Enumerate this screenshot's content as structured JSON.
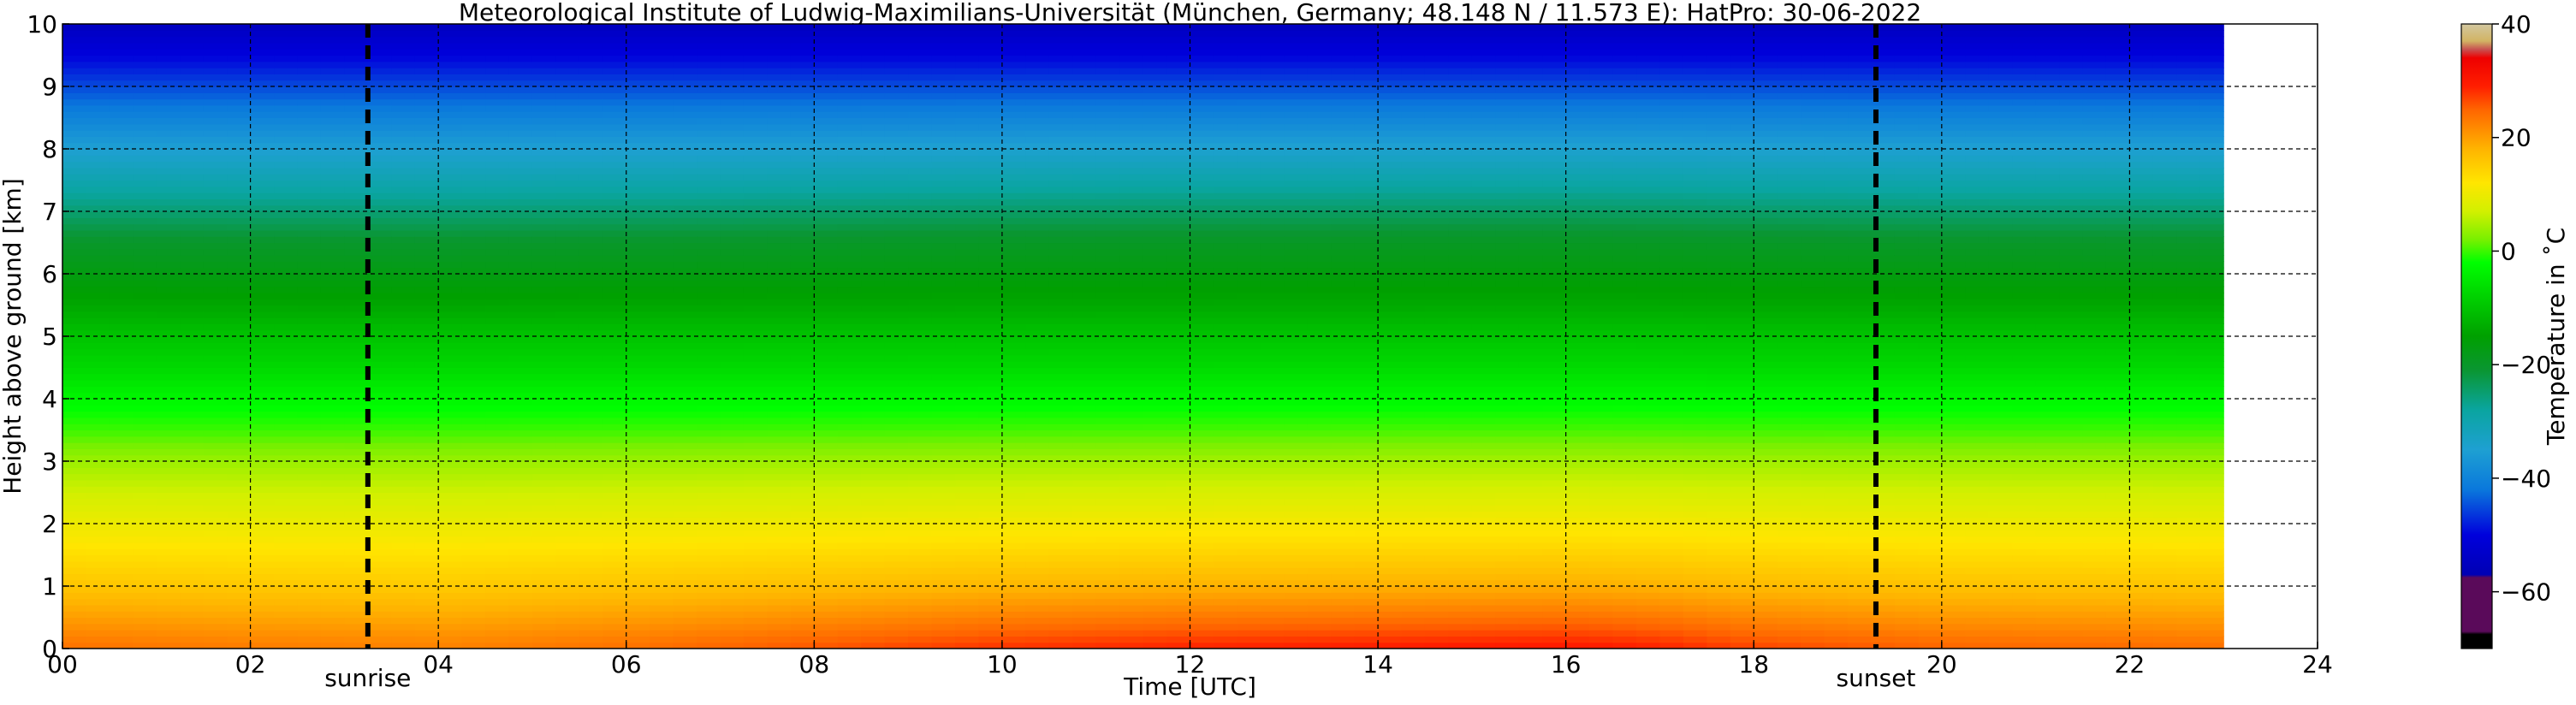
{
  "chart_data": {
    "type": "heatmap",
    "title": "Meteorological Institute of Ludwig-Maximilians-Universität (München, Germany; 48.148 N / 11.573 E):    HatPro: 30-06-2022",
    "xlabel": "Time [UTC]",
    "ylabel": "Height above ground [km]",
    "xlim": [
      0,
      24
    ],
    "ylim": [
      0,
      10
    ],
    "data_end_hour": 23.0,
    "x_ticks": [
      {
        "value": 0,
        "label": "00"
      },
      {
        "value": 2,
        "label": "02"
      },
      {
        "value": 4,
        "label": "04"
      },
      {
        "value": 6,
        "label": "06"
      },
      {
        "value": 8,
        "label": "08"
      },
      {
        "value": 10,
        "label": "10"
      },
      {
        "value": 12,
        "label": "12"
      },
      {
        "value": 14,
        "label": "14"
      },
      {
        "value": 16,
        "label": "16"
      },
      {
        "value": 18,
        "label": "18"
      },
      {
        "value": 20,
        "label": "20"
      },
      {
        "value": 22,
        "label": "22"
      },
      {
        "value": 24,
        "label": "24"
      }
    ],
    "y_ticks": [
      {
        "value": 0,
        "label": "0"
      },
      {
        "value": 1,
        "label": "1"
      },
      {
        "value": 2,
        "label": "2"
      },
      {
        "value": 3,
        "label": "3"
      },
      {
        "value": 4,
        "label": "4"
      },
      {
        "value": 5,
        "label": "5"
      },
      {
        "value": 6,
        "label": "6"
      },
      {
        "value": 7,
        "label": "7"
      },
      {
        "value": 8,
        "label": "8"
      },
      {
        "value": 9,
        "label": "9"
      },
      {
        "value": 10,
        "label": "10"
      }
    ],
    "grid": true,
    "annotations": [
      {
        "label": "sunrise",
        "x": 3.25,
        "style": "dashed-vertical-line"
      },
      {
        "label": "sunset",
        "x": 19.3,
        "style": "dashed-vertical-line"
      }
    ],
    "colorbar": {
      "label": "Temperature in ˚C",
      "range": [
        -70,
        40
      ],
      "ticks": [
        {
          "value": 40,
          "label": "40"
        },
        {
          "value": 20,
          "label": "20"
        },
        {
          "value": 0,
          "label": "0"
        },
        {
          "value": -20,
          "label": "−20"
        },
        {
          "value": -40,
          "label": "−40"
        },
        {
          "value": -60,
          "label": "−60"
        }
      ],
      "stops": [
        {
          "value": -70,
          "color": "#000000"
        },
        {
          "value": -67.5,
          "color": "#000000"
        },
        {
          "value": -67,
          "color": "#5a0a5a"
        },
        {
          "value": -57.5,
          "color": "#5a0a5a"
        },
        {
          "value": -57,
          "color": "#0000b4"
        },
        {
          "value": -50,
          "color": "#0000dc"
        },
        {
          "value": -42,
          "color": "#0a78dc"
        },
        {
          "value": -35,
          "color": "#1ea0d2"
        },
        {
          "value": -28,
          "color": "#0aa5a0"
        },
        {
          "value": -21,
          "color": "#0a9632"
        },
        {
          "value": -15,
          "color": "#00a000"
        },
        {
          "value": -8,
          "color": "#00d200"
        },
        {
          "value": -2,
          "color": "#00ff00"
        },
        {
          "value": 2,
          "color": "#78f000"
        },
        {
          "value": 7,
          "color": "#d2f000"
        },
        {
          "value": 12,
          "color": "#ffe600"
        },
        {
          "value": 18,
          "color": "#ffb400"
        },
        {
          "value": 25,
          "color": "#ff6400"
        },
        {
          "value": 29,
          "color": "#ff1e00"
        },
        {
          "value": 34,
          "color": "#ee0000"
        },
        {
          "value": 35.5,
          "color": "#c85050"
        },
        {
          "value": 37,
          "color": "#d2b464"
        },
        {
          "value": 40,
          "color": "#d2c8a0"
        }
      ]
    },
    "vertical_profile": {
      "height_km": [
        0,
        0.25,
        0.5,
        1.0,
        1.5,
        2.0,
        2.5,
        3.0,
        3.5,
        4.0,
        4.5,
        5.0,
        5.5,
        6.0,
        6.5,
        7.0,
        7.5,
        8.0,
        8.5,
        9.0,
        9.5,
        10.0
      ],
      "temperature_c": [
        24,
        22,
        20,
        16,
        13,
        10,
        7,
        4,
        0,
        -3,
        -7,
        -10,
        -14,
        -17,
        -20,
        -25,
        -30,
        -35,
        -40,
        -45,
        -50,
        -55
      ]
    },
    "diurnal_surface_anomaly": {
      "hour": [
        0,
        2,
        4,
        6,
        8,
        10,
        12,
        14,
        16,
        17,
        18,
        20,
        22,
        23
      ],
      "temperature_offset_c": [
        0,
        -1,
        -1.5,
        0,
        2,
        4,
        5,
        5.5,
        6,
        5,
        3,
        1,
        0.5,
        0
      ]
    }
  }
}
